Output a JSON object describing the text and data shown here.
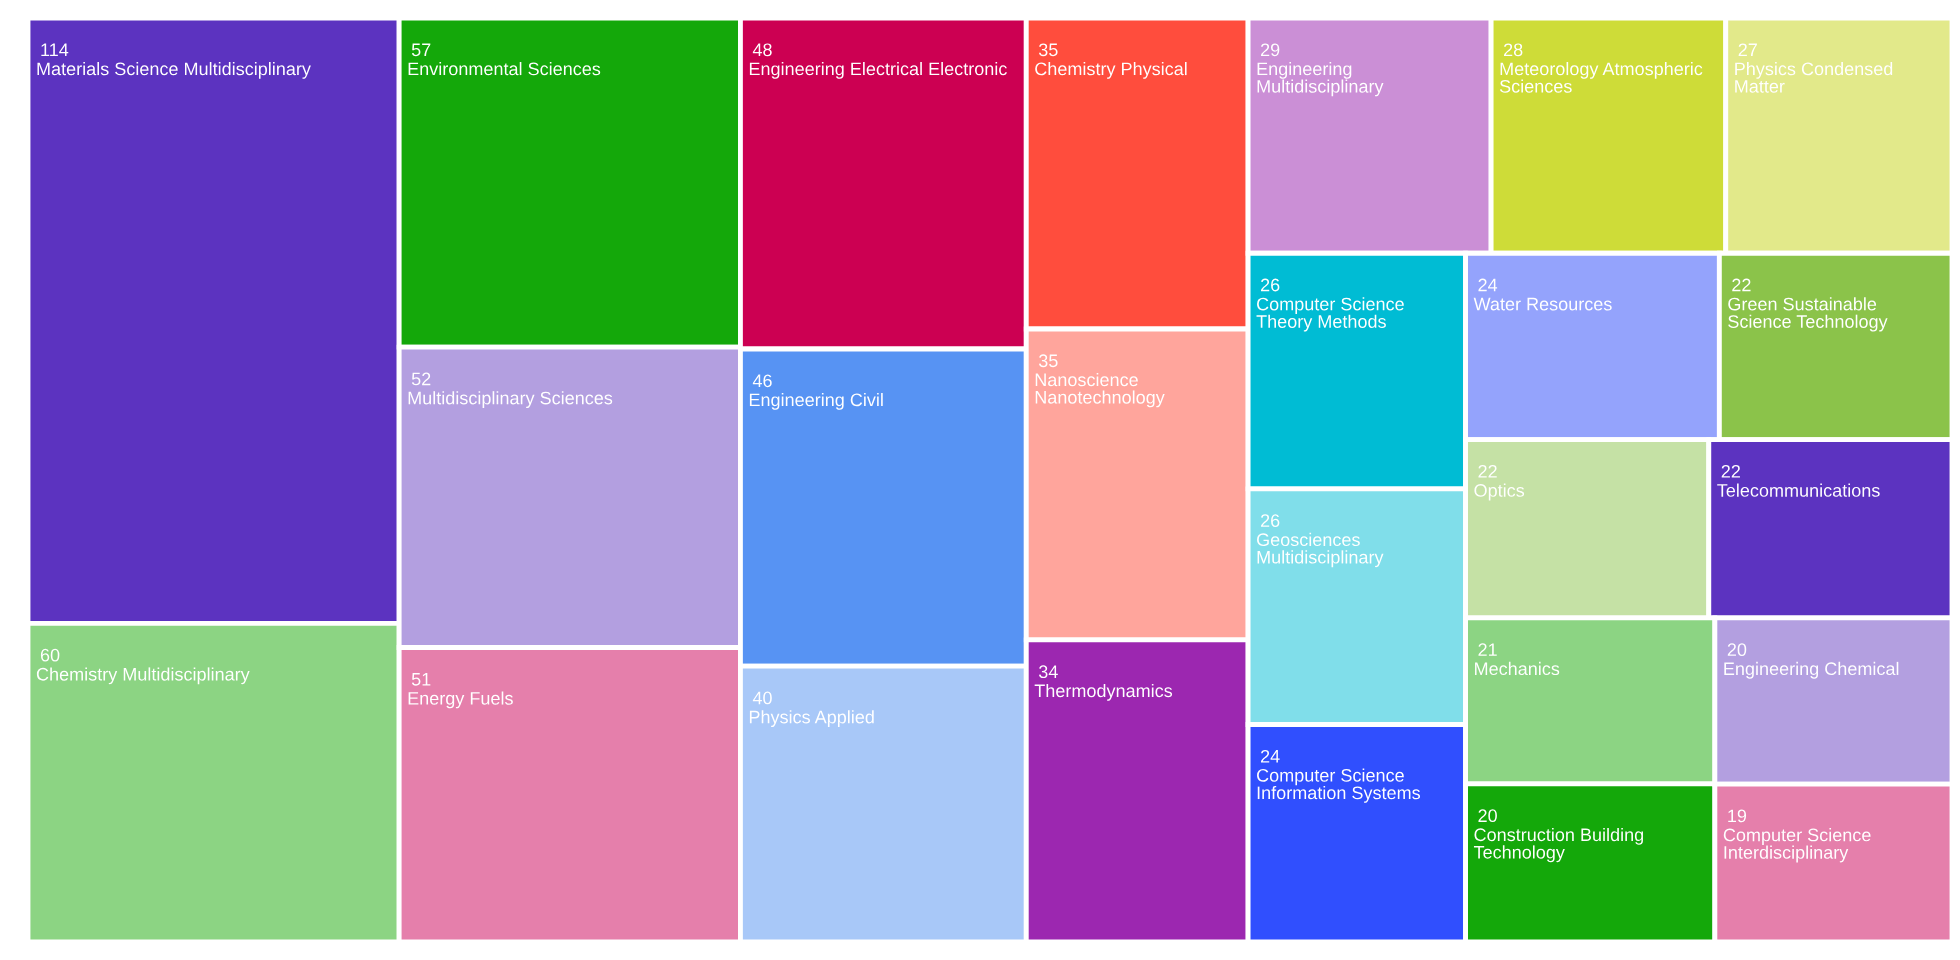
{
  "chart_data": {
    "type": "other",
    "categories": [
      "Materials Science Multidisciplinary",
      "Chemistry Multidisciplinary",
      "Environmental Sciences",
      "Multidisciplinary Sciences",
      "Energy Fuels",
      "Engineering Electrical Electronic",
      "Engineering Civil",
      "Physics Applied",
      "Chemistry Physical",
      "Nanoscience Nanotechnology",
      "Thermodynamics",
      "Engineering Multidisciplinary",
      "Meteorology Atmospheric Sciences",
      "Physics Condensed Matter",
      "Computer Science Theory Methods",
      "Geosciences Multidisciplinary",
      "Computer Science Information Systems",
      "Water Resources",
      "Green Sustainable Science Technology",
      "Optics",
      "Telecommunications",
      "Mechanics",
      "Construction Building Technology",
      "Engineering Chemical",
      "Computer Science Interdisciplinary"
    ],
    "values": [
      114,
      60,
      57,
      52,
      51,
      48,
      46,
      40,
      35,
      35,
      34,
      29,
      28,
      27,
      26,
      26,
      24,
      24,
      22,
      22,
      22,
      21,
      20,
      20,
      19
    ],
    "colors": [
      "#5c33c0",
      "#8cd483",
      "#14a80a",
      "#b39fe0",
      "#e57fab",
      "#cc0052",
      "#5793f3",
      "#a8c8f8",
      "#ff4d3d",
      "#ffa59c",
      "#9c27b0",
      "#cb8fd6",
      "#cedc38",
      "#e2e98a",
      "#00bcd4",
      "#80deea",
      "#304ffe",
      "#94a3fc",
      "#8bc34a",
      "#c5e1a5",
      "#5c33c0",
      "#8cd483",
      "#14a80a",
      "#b39fe0",
      "#e57fab"
    ],
    "data_labels": true
  }
}
